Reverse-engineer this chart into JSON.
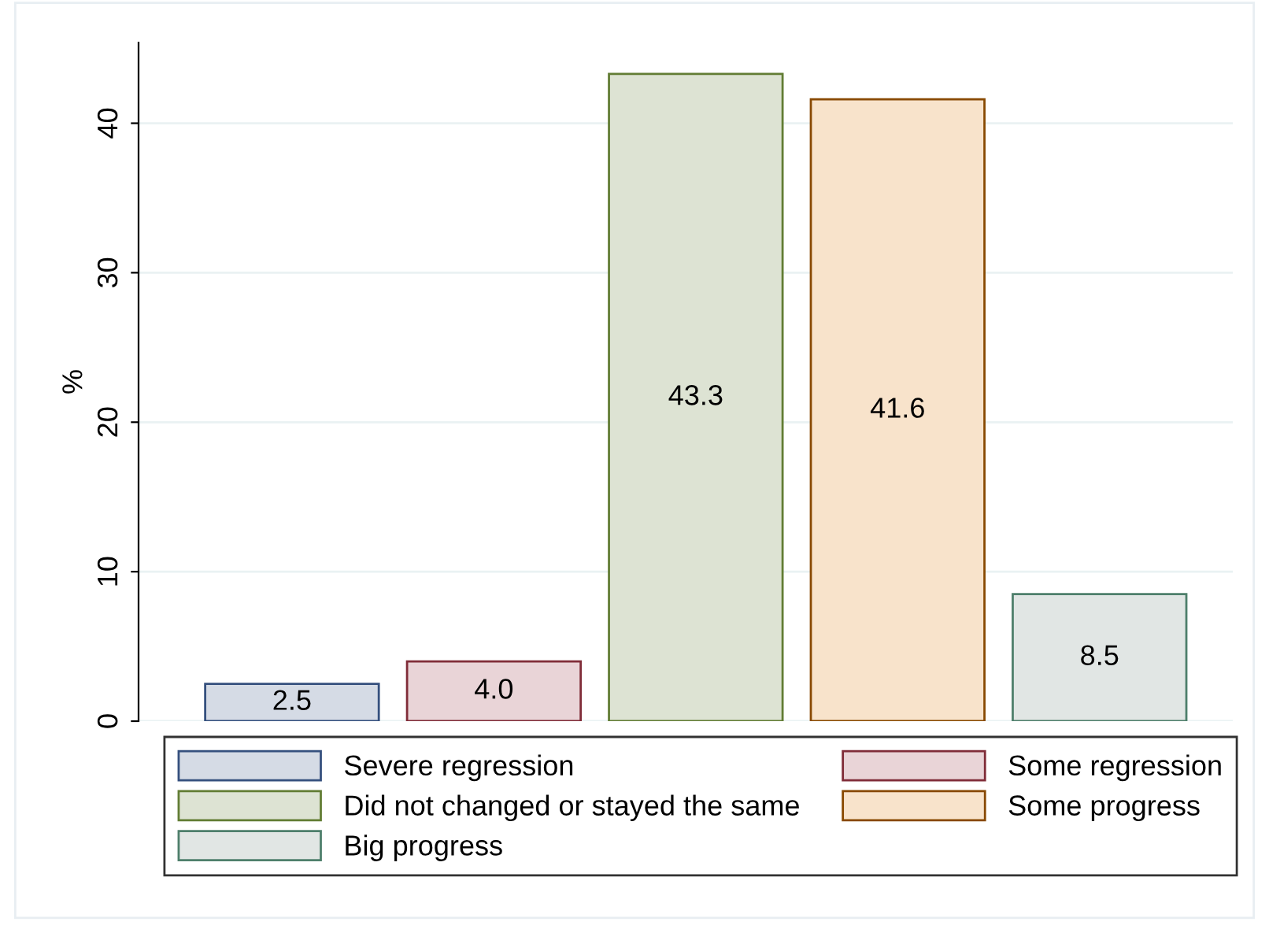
{
  "chart_data": {
    "type": "bar",
    "ylabel": "%",
    "categories": [
      null,
      null,
      null,
      null,
      null
    ],
    "series": [
      {
        "name": "Severe regression",
        "color": "#d5dbe5",
        "values": [
          2.5,
          null,
          null,
          null,
          null
        ]
      },
      {
        "name": "Some regression",
        "color": "#e9d4d7",
        "values": [
          null,
          4.0,
          null,
          null,
          null
        ],
        "value_labels": [
          null,
          "4.0",
          null,
          null,
          null
        ]
      },
      {
        "name": "Did not changed or stayed the same",
        "color": "#dde3d3",
        "values": [
          null,
          null,
          43.3,
          null,
          null
        ]
      },
      {
        "name": "Some progress",
        "color": "#f8e3cb",
        "values": [
          null,
          null,
          null,
          41.6,
          null
        ]
      },
      {
        "name": "Big progress",
        "color": "#e1e6e4",
        "values": [
          null,
          null,
          null,
          null,
          8.5
        ]
      }
    ],
    "ylim": [
      0,
      45.4
    ],
    "yticks": [
      0,
      10,
      20,
      30,
      40
    ],
    "grid": "y",
    "legend": "bottom",
    "data_labels": true,
    "tick_labels": "y"
  }
}
